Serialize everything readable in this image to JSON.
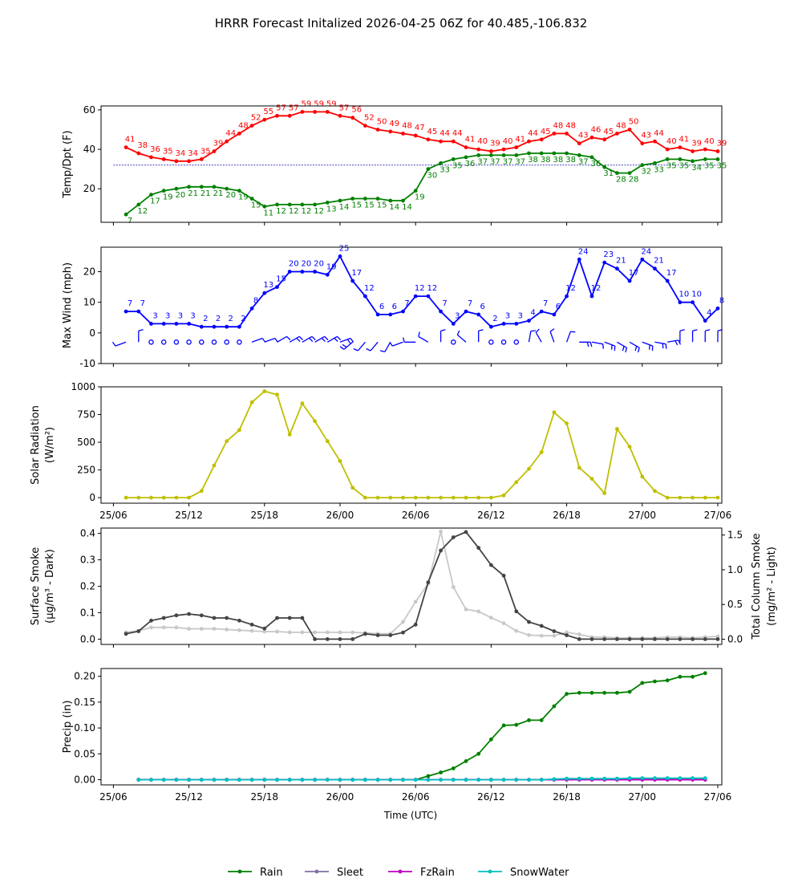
{
  "title": "HRRR Forecast Initalized 2026-04-25 06Z for 40.485,-106.832",
  "x_axis": {
    "label": "Time (UTC)",
    "ticks": [
      {
        "hour": 0,
        "label": "25/06"
      },
      {
        "hour": 6,
        "label": "25/12"
      },
      {
        "hour": 12,
        "label": "25/18"
      },
      {
        "hour": 18,
        "label": "26/00"
      },
      {
        "hour": 24,
        "label": "26/06"
      },
      {
        "hour": 30,
        "label": "26/12"
      },
      {
        "hour": 36,
        "label": "26/18"
      },
      {
        "hour": 42,
        "label": "27/00"
      },
      {
        "hour": 48,
        "label": "27/06"
      }
    ]
  },
  "legend": {
    "placement": "bottom-center",
    "items": [
      {
        "label": "Rain",
        "color": "#008000"
      },
      {
        "label": "Sleet",
        "color": "#8070a0"
      },
      {
        "label": "FzRain",
        "color": "#c000c0"
      },
      {
        "label": "SnowWater",
        "color": "#00bfbf"
      }
    ]
  },
  "chart_data": [
    {
      "id": "temp",
      "type": "line",
      "ylabel": "Temp/Dpt (F)",
      "ylim": [
        3,
        62
      ],
      "yticks": [
        20,
        40,
        60
      ],
      "x_start": 1,
      "freezing_line": 32,
      "series": [
        {
          "name": "Temperature",
          "color": "#ff0000",
          "labels": true,
          "values": [
            41,
            38,
            36,
            35,
            34,
            34,
            35,
            39,
            44,
            48,
            52,
            55,
            57,
            57,
            59,
            59,
            59,
            57,
            56,
            52,
            50,
            49,
            48,
            47,
            45,
            44,
            44,
            41,
            40,
            39,
            40,
            41,
            44,
            45,
            48,
            48,
            43,
            46,
            45,
            48,
            50,
            43,
            44,
            40,
            41,
            39,
            40,
            39
          ]
        },
        {
          "name": "Dewpoint",
          "color": "#008000",
          "labels": true,
          "values": [
            7,
            12,
            17,
            19,
            20,
            21,
            21,
            21,
            20,
            19,
            15,
            11,
            12,
            12,
            12,
            12,
            13,
            14,
            15,
            15,
            15,
            14,
            14,
            19,
            30,
            33,
            35,
            36,
            37,
            37,
            37,
            37,
            38,
            38,
            38,
            38,
            37,
            36,
            31,
            28,
            28,
            32,
            33,
            35,
            35,
            34,
            35,
            35
          ]
        }
      ]
    },
    {
      "id": "wind",
      "type": "line",
      "ylabel": "Max Wind (mph)",
      "ylim": [
        -10,
        28
      ],
      "yticks": [
        -10,
        0,
        10,
        20
      ],
      "x_start": 1,
      "series": [
        {
          "name": "Max Wind",
          "color": "#0000ff",
          "labels": true,
          "values": [
            7,
            7,
            3,
            3,
            3,
            3,
            2,
            2,
            2,
            2,
            8,
            13,
            15,
            20,
            20,
            20,
            19,
            25,
            17,
            12,
            6,
            6,
            7,
            12,
            12,
            7,
            3,
            7,
            6,
            2,
            3,
            3,
            4,
            7,
            6,
            12,
            24,
            12,
            23,
            21,
            17,
            24,
            21,
            17,
            10,
            10,
            4,
            8
          ]
        }
      ],
      "barbs": {
        "y": -3,
        "color": "#0000ff",
        "dir": [
          250,
          0,
          250,
          0,
          0,
          0,
          0,
          0,
          0,
          0,
          70,
          70,
          60,
          60,
          60,
          60,
          60,
          70,
          230,
          220,
          220,
          210,
          250,
          270,
          300,
          0,
          260,
          310,
          0,
          0,
          0,
          0,
          10,
          330,
          340,
          20,
          90,
          100,
          110,
          120,
          120,
          110,
          100,
          80,
          0,
          0,
          0,
          0
        ]
      }
    },
    {
      "id": "solar",
      "type": "line",
      "ylabel": "Solar Radiation",
      "ylabel2": "(W/m²)",
      "ylim": [
        -50,
        1000
      ],
      "yticks": [
        0,
        250,
        500,
        750,
        1000
      ],
      "x_start": 1,
      "series": [
        {
          "name": "Solar Radiation",
          "color": "#bfbf00",
          "values": [
            0,
            0,
            0,
            0,
            0,
            0,
            60,
            290,
            510,
            610,
            860,
            960,
            930,
            570,
            850,
            690,
            510,
            330,
            90,
            0,
            0,
            0,
            0,
            0,
            0,
            0,
            0,
            0,
            0,
            0,
            20,
            140,
            260,
            410,
            770,
            670,
            270,
            170,
            40,
            620,
            460,
            190,
            60,
            0,
            0,
            0,
            0,
            0
          ]
        }
      ]
    },
    {
      "id": "smoke",
      "type": "line",
      "ylabel": "Surface Smoke",
      "ylabel2": "(μg/m³ - Dark)",
      "ylim": [
        -0.02,
        0.42
      ],
      "yticks": [
        0.0,
        0.1,
        0.2,
        0.3,
        0.4
      ],
      "ylabel_right": "Total Column Smoke",
      "ylabel_right2": "(mg/m² - Light)",
      "ylim_right": [
        -0.075,
        1.6
      ],
      "yticks_right": [
        0.0,
        0.5,
        1.0,
        1.5
      ],
      "x_start": 1,
      "series": [
        {
          "name": "Total Column Smoke",
          "color": "#c8c8c8",
          "axis": "right",
          "values": [
            0.1,
            0.12,
            0.17,
            0.17,
            0.17,
            0.15,
            0.15,
            0.15,
            0.14,
            0.13,
            0.12,
            0.11,
            0.11,
            0.1,
            0.1,
            0.1,
            0.1,
            0.1,
            0.1,
            0.09,
            0.08,
            0.08,
            0.25,
            0.54,
            0.8,
            1.55,
            0.75,
            0.43,
            0.4,
            0.31,
            0.23,
            0.12,
            0.06,
            0.05,
            0.05,
            0.1,
            0.07,
            0.03,
            0.03,
            0.02,
            0.02,
            0.02,
            0.02,
            0.03,
            0.03,
            0.02,
            0.03,
            0.04
          ]
        },
        {
          "name": "Surface Smoke",
          "color": "#444444",
          "axis": "left",
          "values": [
            0.02,
            0.03,
            0.07,
            0.08,
            0.09,
            0.095,
            0.09,
            0.08,
            0.08,
            0.07,
            0.055,
            0.04,
            0.08,
            0.08,
            0.08,
            0.0,
            0.0,
            0.0,
            0.0,
            0.02,
            0.015,
            0.015,
            0.025,
            0.055,
            0.215,
            0.335,
            0.385,
            0.405,
            0.345,
            0.28,
            0.24,
            0.105,
            0.065,
            0.05,
            0.03,
            0.015,
            0.0,
            0.0,
            0.0,
            0.0,
            0.0,
            0.0,
            0.0,
            0.0,
            0.0,
            0.0,
            0.0,
            0.0
          ]
        }
      ]
    },
    {
      "id": "precip",
      "type": "line",
      "ylabel": "Precip (in)",
      "ylim": [
        -0.01,
        0.215
      ],
      "yticks": [
        0.0,
        0.05,
        0.1,
        0.15,
        0.2
      ],
      "x_start": 2,
      "series": [
        {
          "name": "Rain",
          "color": "#008000",
          "values": [
            0,
            0,
            0,
            0,
            0,
            0,
            0,
            0,
            0,
            0,
            0,
            0,
            0,
            0,
            0,
            0,
            0,
            0,
            0,
            0,
            0,
            0,
            0,
            0.007,
            0.014,
            0.022,
            0.036,
            0.05,
            0.078,
            0.105,
            0.106,
            0.115,
            0.115,
            0.142,
            0.166,
            0.168,
            0.168,
            0.168,
            0.168,
            0.17,
            0.187,
            0.19,
            0.192,
            0.199,
            0.199,
            0.206
          ]
        },
        {
          "name": "Sleet",
          "color": "#8070a0",
          "values": [
            0,
            0,
            0,
            0,
            0,
            0,
            0,
            0,
            0,
            0,
            0,
            0,
            0,
            0,
            0,
            0,
            0,
            0,
            0,
            0,
            0,
            0,
            0,
            0,
            0,
            0,
            0,
            0,
            0,
            0,
            0,
            0,
            0,
            0.001,
            0.002,
            0.002,
            0.002,
            0.002,
            0.002,
            0.002,
            0.002,
            0.002,
            0.002,
            0.002,
            0.002,
            0.002
          ]
        },
        {
          "name": "FzRain",
          "color": "#c000c0",
          "values": [
            0,
            0,
            0,
            0,
            0,
            0,
            0,
            0,
            0,
            0,
            0,
            0,
            0,
            0,
            0,
            0,
            0,
            0,
            0,
            0,
            0,
            0,
            0,
            0,
            0,
            0,
            0,
            0,
            0,
            0,
            0,
            0,
            0,
            0,
            0,
            0,
            0,
            0,
            0,
            0,
            0,
            0,
            0,
            0,
            0,
            0
          ]
        },
        {
          "name": "SnowWater",
          "color": "#00bfbf",
          "values": [
            0,
            0,
            0,
            0,
            0,
            0,
            0,
            0,
            0,
            0,
            0,
            0,
            0,
            0,
            0,
            0,
            0,
            0,
            0,
            0,
            0,
            0,
            0,
            0,
            0,
            0,
            0,
            0,
            0,
            0,
            0,
            0,
            0,
            0.001,
            0.002,
            0.002,
            0.002,
            0.002,
            0.002,
            0.003,
            0.003,
            0.003,
            0.003,
            0.003,
            0.003,
            0.003
          ]
        }
      ]
    }
  ]
}
